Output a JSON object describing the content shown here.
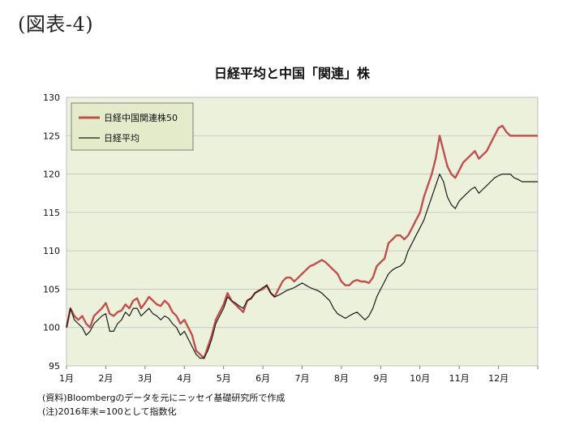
{
  "figure_label": "(図表-4)",
  "notes": {
    "source": "(資料)Bloombergのデータを元にニッセイ基礎研究所で作成",
    "note": "(注)2016年末=100として指数化"
  },
  "colors": {
    "plot_bg": "#ecf1dc",
    "china_series": "#c0504d",
    "nikkei_series": "#1a1a1a",
    "legend_bg": "#e4ebcb",
    "grid": "#ffffff"
  },
  "chart_data": {
    "type": "line",
    "title": "日経平均と中国「関連」株",
    "xlabel": "",
    "ylabel": "",
    "ylim": [
      95,
      130
    ],
    "yticks": [
      95,
      100,
      105,
      110,
      115,
      120,
      125,
      130
    ],
    "xlim": [
      0,
      12
    ],
    "xticks": [
      "1月",
      "2月",
      "3月",
      "4月",
      "5月",
      "6月",
      "7月",
      "8月",
      "9月",
      "10月",
      "11月",
      "12月"
    ],
    "grid": "horizontal",
    "legend_position": "top-left",
    "series": [
      {
        "name": "日経中国関連株50",
        "color": "#c0504d",
        "x": [
          0,
          0.1,
          0.2,
          0.3,
          0.4,
          0.5,
          0.6,
          0.7,
          0.8,
          0.9,
          1.0,
          1.1,
          1.2,
          1.3,
          1.4,
          1.5,
          1.6,
          1.7,
          1.8,
          1.9,
          2.0,
          2.1,
          2.2,
          2.3,
          2.4,
          2.5,
          2.6,
          2.7,
          2.8,
          2.9,
          3.0,
          3.1,
          3.2,
          3.3,
          3.4,
          3.5,
          3.6,
          3.7,
          3.8,
          3.9,
          4.0,
          4.1,
          4.2,
          4.3,
          4.4,
          4.5,
          4.6,
          4.7,
          4.8,
          4.9,
          5.0,
          5.1,
          5.2,
          5.3,
          5.4,
          5.5,
          5.6,
          5.7,
          5.8,
          5.9,
          6.0,
          6.1,
          6.2,
          6.3,
          6.4,
          6.5,
          6.6,
          6.7,
          6.8,
          6.9,
          7.0,
          7.1,
          7.2,
          7.3,
          7.4,
          7.5,
          7.6,
          7.7,
          7.8,
          7.9,
          8.0,
          8.1,
          8.2,
          8.3,
          8.4,
          8.5,
          8.6,
          8.7,
          8.8,
          8.9,
          9.0,
          9.1,
          9.2,
          9.3,
          9.4,
          9.5,
          9.6,
          9.7,
          9.8,
          9.9,
          10.0,
          10.1,
          10.2,
          10.3,
          10.4,
          10.5,
          10.6,
          10.7,
          10.8,
          10.9,
          11.0,
          11.1,
          11.2,
          11.3,
          11.4,
          11.5,
          11.6,
          11.7,
          11.8,
          11.9,
          12.0
        ],
        "values": [
          100,
          102.5,
          101.5,
          101,
          101.5,
          100.5,
          100,
          101.5,
          102,
          102.5,
          103.2,
          101.8,
          101.5,
          102,
          102.2,
          103,
          102.5,
          103.5,
          103.8,
          102.5,
          103.2,
          104,
          103.5,
          103,
          102.8,
          103.5,
          103,
          102,
          101.5,
          100.5,
          101,
          100,
          99,
          97,
          96.5,
          96,
          97.5,
          99,
          101,
          102,
          103,
          104.5,
          103.5,
          103,
          102.5,
          102,
          103.5,
          103.8,
          104.5,
          104.8,
          105,
          105.5,
          104.5,
          104,
          105,
          106,
          106.5,
          106.5,
          106,
          106.5,
          107,
          107.5,
          108,
          108.2,
          108.5,
          108.8,
          108.5,
          108,
          107.5,
          107,
          106,
          105.5,
          105.5,
          106,
          106.2,
          106,
          106,
          105.8,
          106.5,
          108,
          108.5,
          109,
          111,
          111.5,
          112,
          112,
          111.5,
          112,
          113,
          114,
          115,
          117,
          118.5,
          120,
          122,
          125,
          123,
          121,
          120,
          119.5,
          120.5,
          121.5,
          122,
          122.5,
          123,
          122,
          122.5,
          123,
          124,
          125,
          126,
          126.3,
          125.5,
          125,
          125,
          125,
          125,
          125,
          125,
          125,
          125
        ]
      },
      {
        "name": "日経平均",
        "color": "#1a1a1a",
        "x": [
          0,
          0.1,
          0.2,
          0.3,
          0.4,
          0.5,
          0.6,
          0.7,
          0.8,
          0.9,
          1.0,
          1.1,
          1.2,
          1.3,
          1.4,
          1.5,
          1.6,
          1.7,
          1.8,
          1.9,
          2.0,
          2.1,
          2.2,
          2.3,
          2.4,
          2.5,
          2.6,
          2.7,
          2.8,
          2.9,
          3.0,
          3.1,
          3.2,
          3.3,
          3.4,
          3.5,
          3.6,
          3.7,
          3.8,
          3.9,
          4.0,
          4.1,
          4.2,
          4.3,
          4.4,
          4.5,
          4.6,
          4.7,
          4.8,
          4.9,
          5.0,
          5.1,
          5.2,
          5.3,
          5.4,
          5.5,
          5.6,
          5.7,
          5.8,
          5.9,
          6.0,
          6.1,
          6.2,
          6.3,
          6.4,
          6.5,
          6.6,
          6.7,
          6.8,
          6.9,
          7.0,
          7.1,
          7.2,
          7.3,
          7.4,
          7.5,
          7.6,
          7.7,
          7.8,
          7.9,
          8.0,
          8.1,
          8.2,
          8.3,
          8.4,
          8.5,
          8.6,
          8.7,
          8.8,
          8.9,
          9.0,
          9.1,
          9.2,
          9.3,
          9.4,
          9.5,
          9.6,
          9.7,
          9.8,
          9.9,
          10.0,
          10.1,
          10.2,
          10.3,
          10.4,
          10.5,
          10.6,
          10.7,
          10.8,
          10.9,
          11.0,
          11.1,
          11.2,
          11.3,
          11.4,
          11.5,
          11.6,
          11.7,
          11.8,
          11.9,
          12.0
        ],
        "values": [
          100,
          102.5,
          101,
          100.5,
          100,
          99,
          99.5,
          100.5,
          101,
          101.5,
          101.8,
          99.5,
          99.5,
          100.5,
          101,
          102,
          101.5,
          102.5,
          102.5,
          101.5,
          102,
          102.5,
          101.8,
          101.5,
          101,
          101.5,
          101.2,
          100.5,
          100,
          99,
          99.5,
          98.5,
          97.5,
          96.5,
          96,
          96,
          97,
          98.5,
          100.5,
          101.5,
          102.5,
          104,
          103.5,
          103.2,
          102.8,
          102.5,
          103.5,
          103.8,
          104.5,
          104.8,
          105.2,
          105.5,
          104.5,
          104,
          104.2,
          104.5,
          104.8,
          105,
          105.2,
          105.5,
          105.8,
          105.5,
          105.2,
          105,
          104.8,
          104.5,
          104,
          103.5,
          102.5,
          101.8,
          101.5,
          101.2,
          101.5,
          101.8,
          102,
          101.5,
          101,
          101.5,
          102.5,
          104,
          105,
          106,
          107,
          107.5,
          107.8,
          108,
          108.5,
          110,
          111,
          112,
          113,
          114,
          115.5,
          117,
          118.5,
          120,
          119,
          117,
          116,
          115.5,
          116.5,
          117,
          117.5,
          118,
          118.3,
          117.5,
          118,
          118.5,
          119,
          119.5,
          119.8,
          120,
          120,
          120,
          119.5,
          119.3,
          119,
          119,
          119,
          119,
          119
        ]
      }
    ]
  }
}
